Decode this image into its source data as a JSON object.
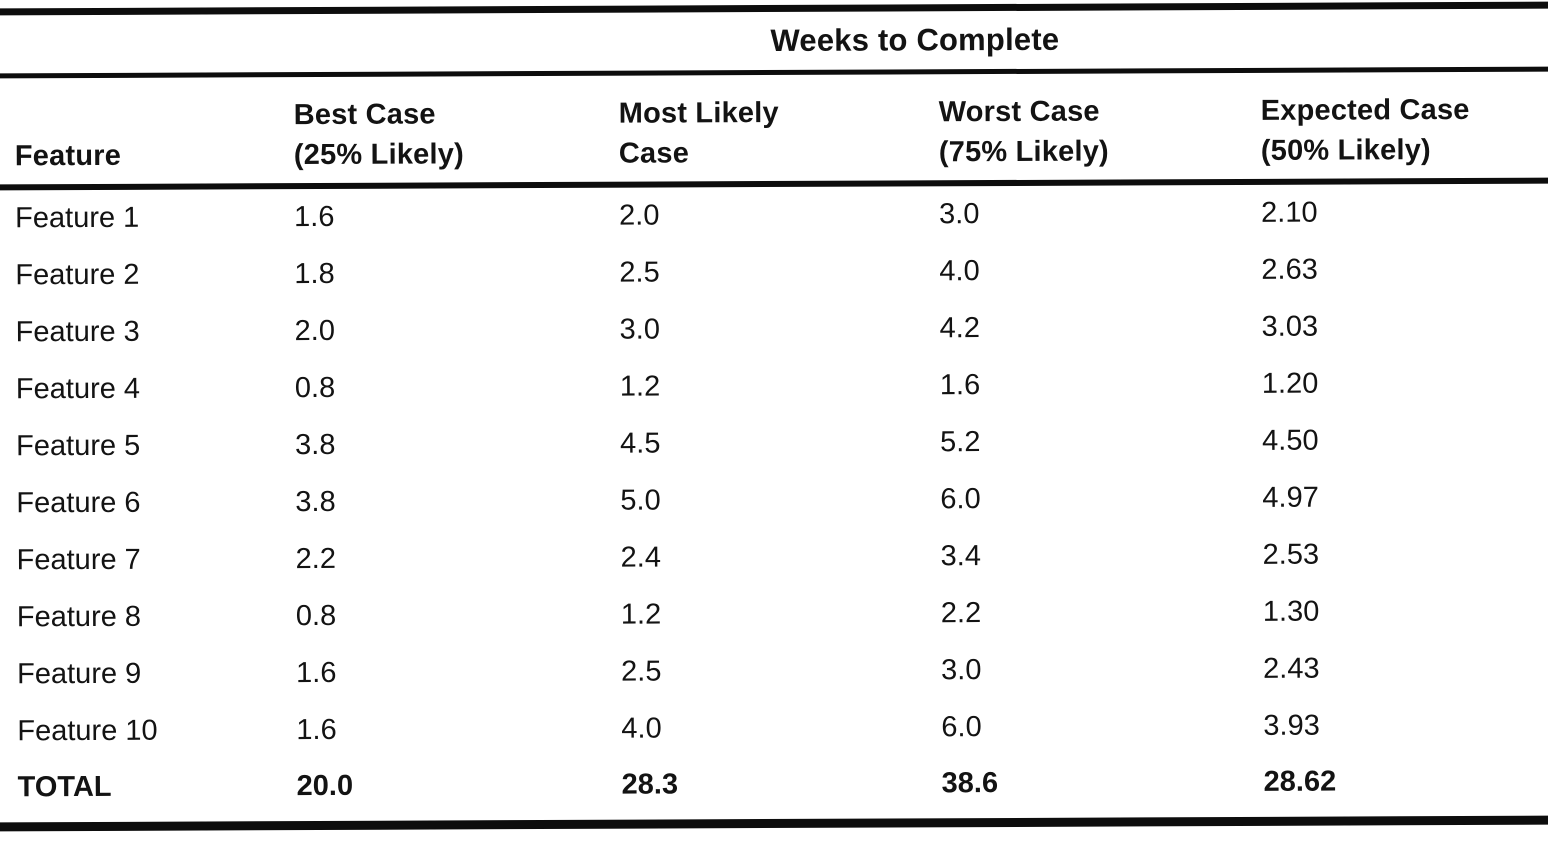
{
  "colors": {
    "ink": "#131313",
    "paper": "#ffffff"
  },
  "table": {
    "span_header": "Weeks to Complete",
    "columns": [
      {
        "label": "Feature",
        "sub": ""
      },
      {
        "label": "Best Case",
        "sub": "(25% Likely)"
      },
      {
        "label": "Most Likely",
        "sub": "Case"
      },
      {
        "label": "Worst Case",
        "sub": "(75% Likely)"
      },
      {
        "label": "Expected Case",
        "sub": "(50% Likely)"
      }
    ],
    "rows": [
      {
        "feature": "Feature 1",
        "best": "1.6",
        "most_likely": "2.0",
        "worst": "3.0",
        "expected": "2.10"
      },
      {
        "feature": "Feature 2",
        "best": "1.8",
        "most_likely": "2.5",
        "worst": "4.0",
        "expected": "2.63"
      },
      {
        "feature": "Feature 3",
        "best": "2.0",
        "most_likely": "3.0",
        "worst": "4.2",
        "expected": "3.03"
      },
      {
        "feature": "Feature 4",
        "best": "0.8",
        "most_likely": "1.2",
        "worst": "1.6",
        "expected": "1.20"
      },
      {
        "feature": "Feature 5",
        "best": "3.8",
        "most_likely": "4.5",
        "worst": "5.2",
        "expected": "4.50"
      },
      {
        "feature": "Feature 6",
        "best": "3.8",
        "most_likely": "5.0",
        "worst": "6.0",
        "expected": "4.97"
      },
      {
        "feature": "Feature 7",
        "best": "2.2",
        "most_likely": "2.4",
        "worst": "3.4",
        "expected": "2.53"
      },
      {
        "feature": "Feature 8",
        "best": "0.8",
        "most_likely": "1.2",
        "worst": "2.2",
        "expected": "1.30"
      },
      {
        "feature": "Feature 9",
        "best": "1.6",
        "most_likely": "2.5",
        "worst": "3.0",
        "expected": "2.43"
      },
      {
        "feature": "Feature 10",
        "best": "1.6",
        "most_likely": "4.0",
        "worst": "6.0",
        "expected": "3.93"
      }
    ],
    "total": {
      "feature": "TOTAL",
      "best": "20.0",
      "most_likely": "28.3",
      "worst": "38.6",
      "expected": "28.62"
    }
  }
}
